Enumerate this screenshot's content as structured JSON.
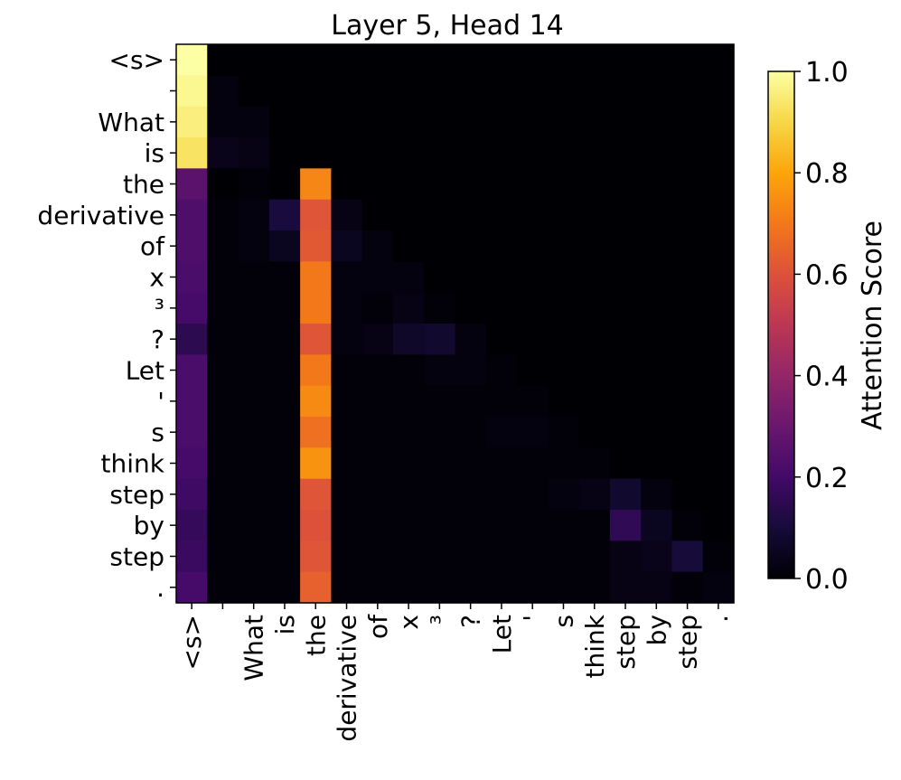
{
  "chart_data": {
    "type": "heatmap",
    "title": "Layer 5, Head 14",
    "colorscale": "inferno",
    "x_tokens": [
      "<s>",
      "",
      "What",
      "is",
      "the",
      "derivative",
      "of",
      "x",
      "³",
      "?",
      "Let",
      "'",
      "s",
      "think",
      "step",
      "by",
      "step",
      "."
    ],
    "y_tokens": [
      "<s>",
      "",
      "What",
      "is",
      "the",
      "derivative",
      "of",
      "x",
      "³",
      "?",
      "Let",
      "'",
      "s",
      "think",
      "step",
      "by",
      "step",
      "."
    ],
    "values": [
      [
        1.0,
        0,
        0,
        0,
        0,
        0,
        0,
        0,
        0,
        0,
        0,
        0,
        0,
        0,
        0,
        0,
        0,
        0
      ],
      [
        0.98,
        0.02,
        0,
        0,
        0,
        0,
        0,
        0,
        0,
        0,
        0,
        0,
        0,
        0,
        0,
        0,
        0,
        0
      ],
      [
        0.96,
        0.02,
        0.02,
        0,
        0,
        0,
        0,
        0,
        0,
        0,
        0,
        0,
        0,
        0,
        0,
        0,
        0,
        0
      ],
      [
        0.93,
        0.04,
        0.03,
        0,
        0,
        0,
        0,
        0,
        0,
        0,
        0,
        0,
        0,
        0,
        0,
        0,
        0,
        0
      ],
      [
        0.26,
        0,
        0.01,
        0,
        0.73,
        0,
        0,
        0,
        0,
        0,
        0,
        0,
        0,
        0,
        0,
        0,
        0,
        0
      ],
      [
        0.23,
        0.01,
        0.02,
        0.11,
        0.61,
        0.03,
        0,
        0,
        0,
        0,
        0,
        0,
        0,
        0,
        0,
        0,
        0,
        0
      ],
      [
        0.23,
        0.01,
        0.02,
        0.05,
        0.62,
        0.05,
        0.02,
        0,
        0,
        0,
        0,
        0,
        0,
        0,
        0,
        0,
        0,
        0
      ],
      [
        0.22,
        0.01,
        0.01,
        0.01,
        0.7,
        0.02,
        0.02,
        0.02,
        0,
        0,
        0,
        0,
        0,
        0,
        0,
        0,
        0,
        0
      ],
      [
        0.21,
        0.01,
        0.01,
        0.01,
        0.7,
        0.02,
        0.01,
        0.03,
        0.01,
        0,
        0,
        0,
        0,
        0,
        0,
        0,
        0,
        0
      ],
      [
        0.15,
        0.01,
        0.01,
        0.01,
        0.61,
        0.02,
        0.03,
        0.07,
        0.08,
        0.02,
        0,
        0,
        0,
        0,
        0,
        0,
        0,
        0
      ],
      [
        0.22,
        0.01,
        0.01,
        0.01,
        0.7,
        0.01,
        0.01,
        0.01,
        0.02,
        0.02,
        0.01,
        0,
        0,
        0,
        0,
        0,
        0,
        0
      ],
      [
        0.22,
        0.01,
        0.01,
        0.01,
        0.74,
        0.01,
        0.01,
        0.01,
        0.01,
        0.01,
        0.01,
        0.01,
        0,
        0,
        0,
        0,
        0,
        0
      ],
      [
        0.22,
        0.01,
        0.01,
        0.01,
        0.68,
        0.01,
        0.01,
        0.01,
        0.01,
        0.01,
        0.02,
        0.02,
        0.01,
        0,
        0,
        0,
        0,
        0
      ],
      [
        0.21,
        0.01,
        0.01,
        0.01,
        0.76,
        0.01,
        0.01,
        0.01,
        0.01,
        0.01,
        0.01,
        0.01,
        0.01,
        0.01,
        0,
        0,
        0,
        0
      ],
      [
        0.19,
        0.01,
        0.01,
        0.01,
        0.61,
        0.01,
        0.01,
        0.01,
        0.01,
        0.01,
        0.01,
        0.01,
        0.02,
        0.03,
        0.08,
        0.02,
        0,
        0
      ],
      [
        0.17,
        0.01,
        0.01,
        0.01,
        0.6,
        0.01,
        0.01,
        0.01,
        0.01,
        0.01,
        0.01,
        0.01,
        0.01,
        0.01,
        0.16,
        0.05,
        0.01,
        0
      ],
      [
        0.18,
        0.01,
        0.01,
        0.01,
        0.61,
        0.01,
        0.01,
        0.01,
        0.01,
        0.01,
        0.01,
        0.01,
        0.01,
        0.01,
        0.03,
        0.04,
        0.1,
        0.01
      ],
      [
        0.21,
        0.01,
        0.01,
        0.01,
        0.64,
        0.01,
        0.01,
        0.01,
        0.01,
        0.01,
        0.01,
        0.01,
        0.01,
        0.01,
        0.03,
        0.03,
        0.01,
        0.02
      ]
    ],
    "colorbar": {
      "label": "Attention Score",
      "range": [
        0,
        1
      ],
      "ticks": [
        "0.0",
        "0.2",
        "0.4",
        "0.6",
        "0.8",
        "1.0"
      ]
    }
  }
}
